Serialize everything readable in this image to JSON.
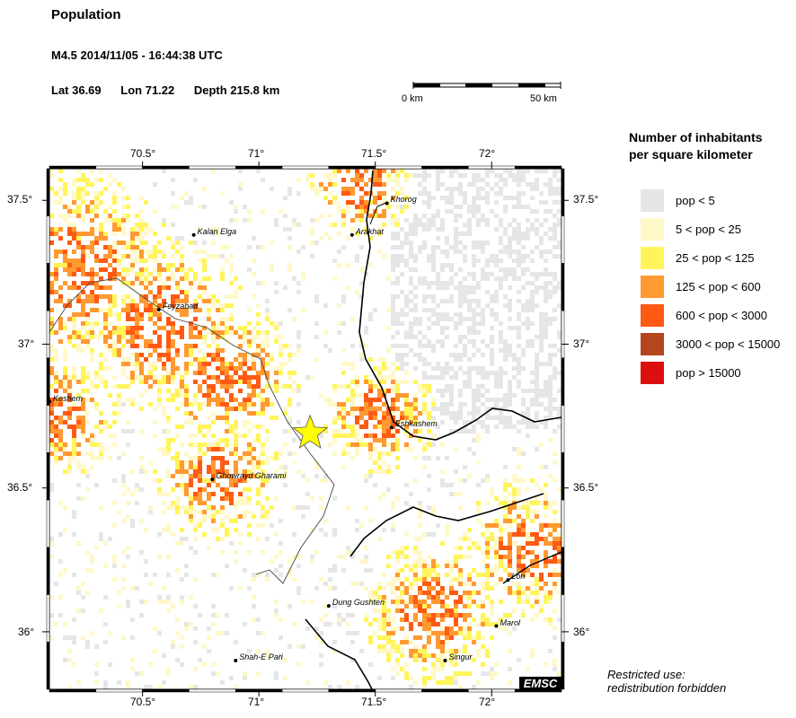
{
  "header": {
    "title": "Population",
    "event": "M4.5  2014/11/05 - 16:44:38 UTC",
    "lat": "Lat 36.69",
    "lon": "Lon  71.22",
    "depth": "Depth 215.8 km"
  },
  "scale_bar": {
    "start_label": "0 km",
    "end_label": "50 km"
  },
  "axes": {
    "lon_ticks": [
      "70.5°",
      "71°",
      "71.5°",
      "72°"
    ],
    "lat_ticks": [
      "37.5°",
      "37°",
      "36.5°",
      "36°"
    ]
  },
  "epicenter": {
    "lat": 36.69,
    "lon": 71.22,
    "color": "#ffff00"
  },
  "cities": [
    {
      "name": "Khorog",
      "lat": 37.49,
      "lon": 71.55
    },
    {
      "name": "Arakhat",
      "lat": 37.38,
      "lon": 71.4
    },
    {
      "name": "Kalan Elga",
      "lat": 37.38,
      "lon": 70.72
    },
    {
      "name": "Feyzabad",
      "lat": 37.12,
      "lon": 70.57
    },
    {
      "name": "Keshem",
      "lat": 36.8,
      "lon": 70.1
    },
    {
      "name": "Eshkashem",
      "lat": 36.71,
      "lon": 71.57
    },
    {
      "name": "Ghowrayd Gharami",
      "lat": 36.53,
      "lon": 70.8
    },
    {
      "name": "Lon",
      "lat": 36.18,
      "lon": 72.07
    },
    {
      "name": "Dung Gushten",
      "lat": 36.09,
      "lon": 71.3
    },
    {
      "name": "Marol",
      "lat": 36.02,
      "lon": 72.02
    },
    {
      "name": "Singur",
      "lat": 35.9,
      "lon": 71.8
    },
    {
      "name": "Shah-E Pari",
      "lat": 35.9,
      "lon": 70.9
    }
  ],
  "legend": {
    "title_line1": "Number of inhabitants",
    "title_line2": "per square kilometer",
    "items": [
      {
        "label": "pop < 5",
        "color": "#e6e6e6"
      },
      {
        "label": "5 < pop < 25",
        "color": "#fff8c8"
      },
      {
        "label": "25 < pop < 125",
        "color": "#fff55a"
      },
      {
        "label": "125 < pop < 600",
        "color": "#ff9932"
      },
      {
        "label": "600 < pop < 3000",
        "color": "#ff5a14"
      },
      {
        "label": "3000 < pop < 15000",
        "color": "#b4461e"
      },
      {
        "label": "pop > 15000",
        "color": "#dc0f0f"
      }
    ]
  },
  "notice_line1": "Restricted use:",
  "notice_line2": "redistribution forbidden",
  "badge": "EMSC"
}
